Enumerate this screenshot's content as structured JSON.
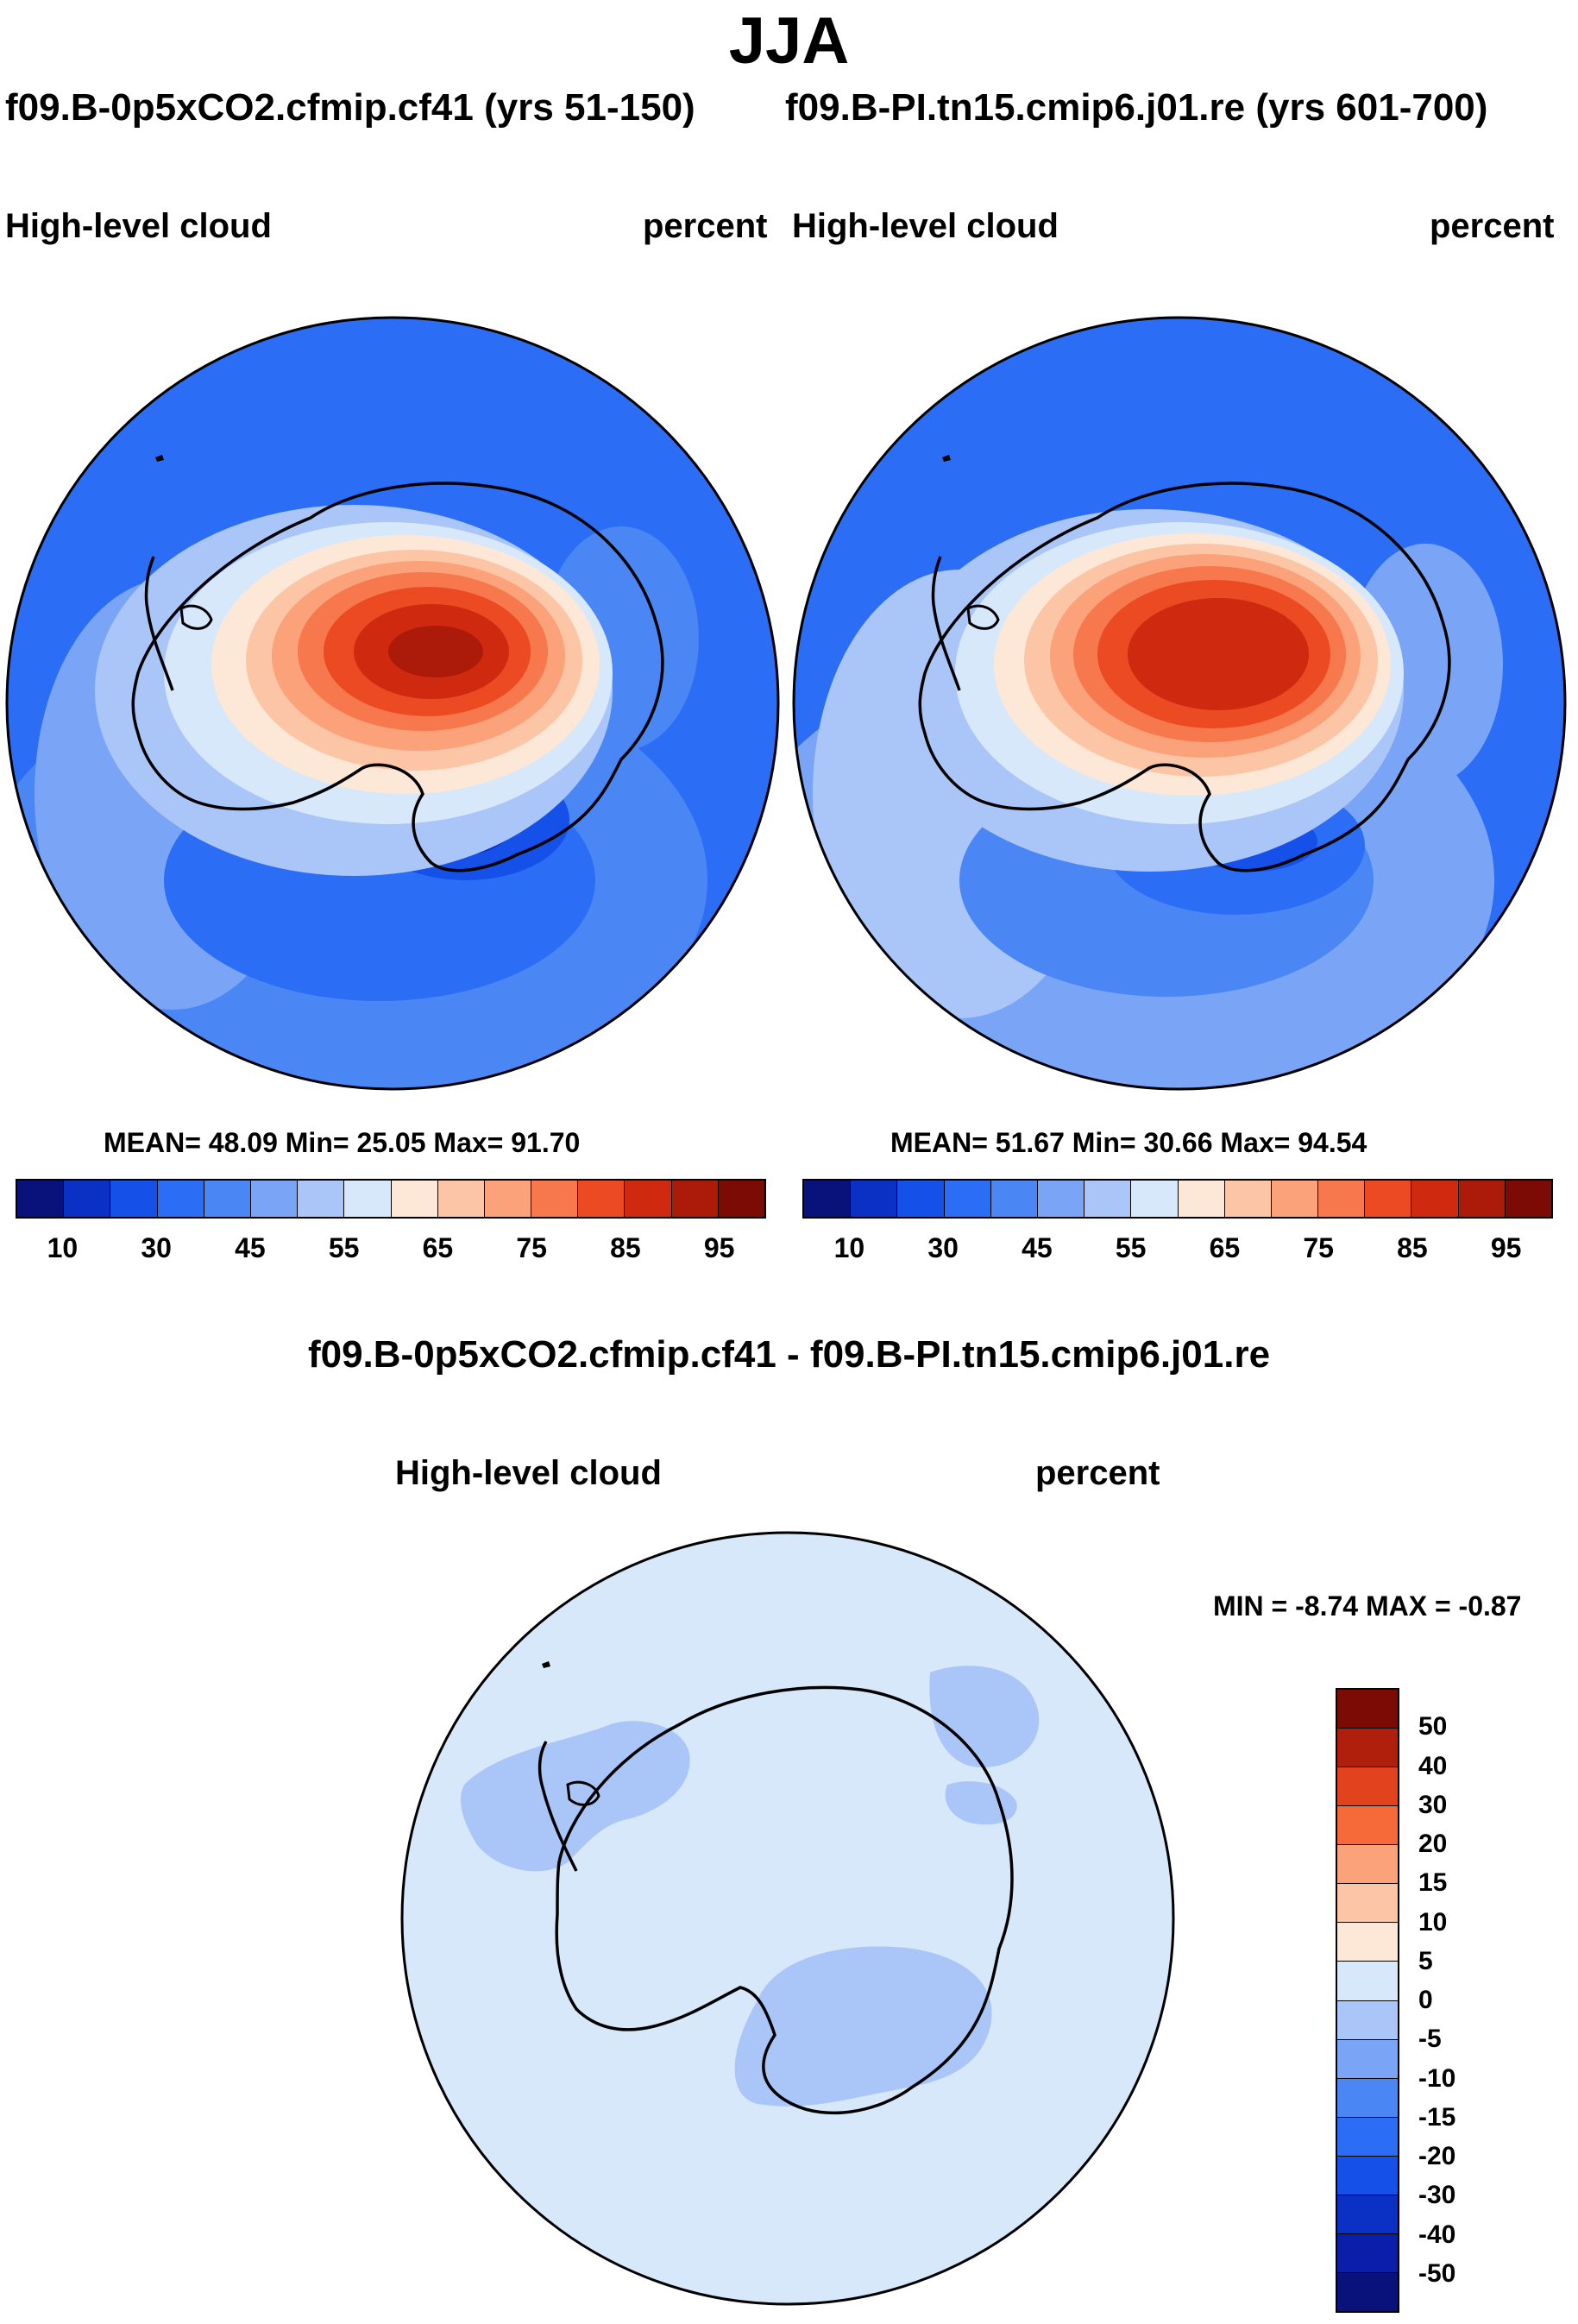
{
  "header": {
    "season": "JJA",
    "case_left": "f09.B-0p5xCO2.cfmip.cf41 (yrs 51-150)",
    "case_right": "f09.B-PI.tn15.cmip6.j01.re (yrs 601-700)"
  },
  "panel_left": {
    "variable": "High-level cloud",
    "units": "percent",
    "stats": "MEAN=  48.09  Min=  25.05  Max=  91.70"
  },
  "panel_right": {
    "variable": "High-level cloud",
    "units": "percent",
    "stats": "MEAN=  51.67  Min=  30.66  Max=  94.54"
  },
  "panel_diff": {
    "title": "f09.B-0p5xCO2.cfmip.cf41 - f09.B-PI.tn15.cmip6.j01.re",
    "variable": "High-level cloud",
    "units": "percent",
    "minmax": "MIN =  -8.74 MAX =  -0.87"
  },
  "colorbar_abs": {
    "colors": [
      "#08127a",
      "#0a30c4",
      "#1550e8",
      "#2b6ef5",
      "#4a86f4",
      "#7aa5f6",
      "#aac6f8",
      "#d8e8fb",
      "#fde7d6",
      "#fcc6a6",
      "#fba27a",
      "#f7784d",
      "#ec4a22",
      "#cf2a10",
      "#ac1a0a",
      "#7d0b05"
    ],
    "labels": [
      "10",
      "30",
      "45",
      "55",
      "65",
      "75",
      "85",
      "95"
    ]
  },
  "colorbar_diff": {
    "colors": [
      "#7d0b05",
      "#b01e0c",
      "#e2421d",
      "#f66a3a",
      "#fba27a",
      "#fcc6a6",
      "#fde7d6",
      "#d8e8fb",
      "#aac6f8",
      "#7aa5f6",
      "#4a86f4",
      "#2b6ef5",
      "#1550e8",
      "#0a30c4",
      "#0a1eaa",
      "#08127a"
    ],
    "labels": [
      "50",
      "40",
      "30",
      "20",
      "15",
      "10",
      "5",
      "0",
      "-5",
      "-10",
      "-15",
      "-20",
      "-30",
      "-40",
      "-50"
    ]
  }
}
